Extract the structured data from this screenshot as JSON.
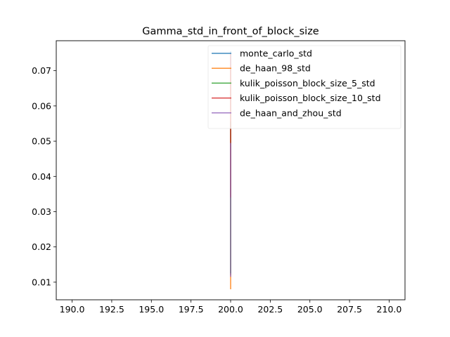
{
  "chart_data": {
    "type": "line",
    "title": "Gamma_std_in_front_of_block_size",
    "xlabel": "",
    "ylabel": "",
    "xlim": [
      189.0,
      211.0
    ],
    "ylim": [
      0.005,
      0.0785
    ],
    "xticks": [
      190.0,
      192.5,
      195.0,
      197.5,
      200.0,
      202.5,
      205.0,
      207.5,
      210.0
    ],
    "xtick_labels": [
      "190.0",
      "192.5",
      "195.0",
      "197.5",
      "200.0",
      "202.5",
      "205.0",
      "207.5",
      "210.0"
    ],
    "yticks": [
      0.01,
      0.02,
      0.03,
      0.04,
      0.05,
      0.06,
      0.07
    ],
    "ytick_labels": [
      "0.01",
      "0.02",
      "0.03",
      "0.04",
      "0.05",
      "0.06",
      "0.07"
    ],
    "legend_position": "upper-right",
    "grid": false,
    "series": [
      {
        "name": "monte_carlo_std",
        "color": "#1f77b4",
        "x": [
          200,
          200
        ],
        "y": [
          0.012,
          0.0755
        ]
      },
      {
        "name": "de_haan_98_std",
        "color": "#ff7f0e",
        "x": [
          200,
          200
        ],
        "y": [
          0.008,
          0.0715
        ]
      },
      {
        "name": "kulik_poisson_block_size_5_std",
        "color": "#2ca02c",
        "x": [
          200,
          200
        ],
        "y": [
          0.0125,
          0.0555
        ]
      },
      {
        "name": "kulik_poisson_block_size_10_std",
        "color": "#d62728",
        "x": [
          200,
          200
        ],
        "y": [
          0.034,
          0.075
        ]
      },
      {
        "name": "de_haan_and_zhou_std",
        "color": "#9467bd",
        "x": [
          200,
          200
        ],
        "y": [
          0.0115,
          0.0495
        ]
      }
    ]
  }
}
